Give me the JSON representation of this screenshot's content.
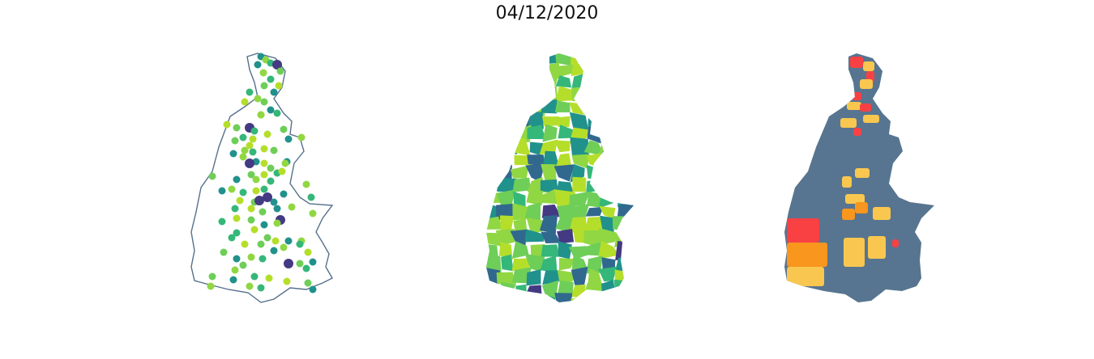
{
  "figure": {
    "title": "04/12/2020"
  },
  "colors": {
    "outline": "#56708c",
    "viridis": [
      "#443983",
      "#31688e",
      "#21918c",
      "#35b779",
      "#6ece58",
      "#90d743",
      "#b5de2b"
    ],
    "regions": [
      "#f94144",
      "#f8961e",
      "#f9c74f",
      "#577590"
    ]
  },
  "panels": [
    {
      "name": "points-map"
    },
    {
      "name": "choropleth-viridis"
    },
    {
      "name": "choropleth-categories"
    }
  ]
}
